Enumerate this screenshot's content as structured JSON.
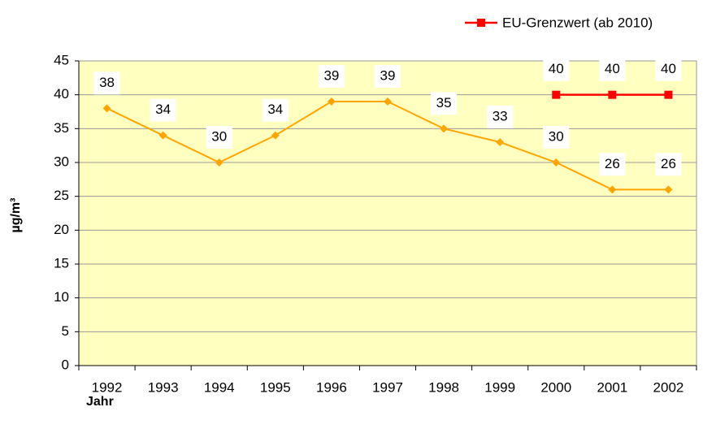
{
  "chart_data": {
    "type": "line",
    "y_label": "µg/m³",
    "x_label": "Jahr",
    "categories": [
      "1992",
      "1993",
      "1994",
      "1995",
      "1996",
      "1997",
      "1998",
      "1999",
      "2000",
      "2001",
      "2002"
    ],
    "series": [
      {
        "color": "#ffa500",
        "values": [
          38,
          34,
          30,
          34,
          39,
          39,
          35,
          33,
          30,
          26,
          26
        ]
      },
      {
        "name": "EU-Grenzwert (ab 2010)",
        "color": "#ff0000",
        "values": [
          null,
          null,
          null,
          null,
          null,
          null,
          null,
          null,
          40,
          40,
          40
        ]
      }
    ],
    "ylim": [
      0,
      45
    ],
    "yticks": [
      0,
      5,
      10,
      15,
      20,
      25,
      30,
      35,
      40,
      45
    ],
    "grid": true,
    "legend": "top-right",
    "background": "#ffffc0"
  }
}
